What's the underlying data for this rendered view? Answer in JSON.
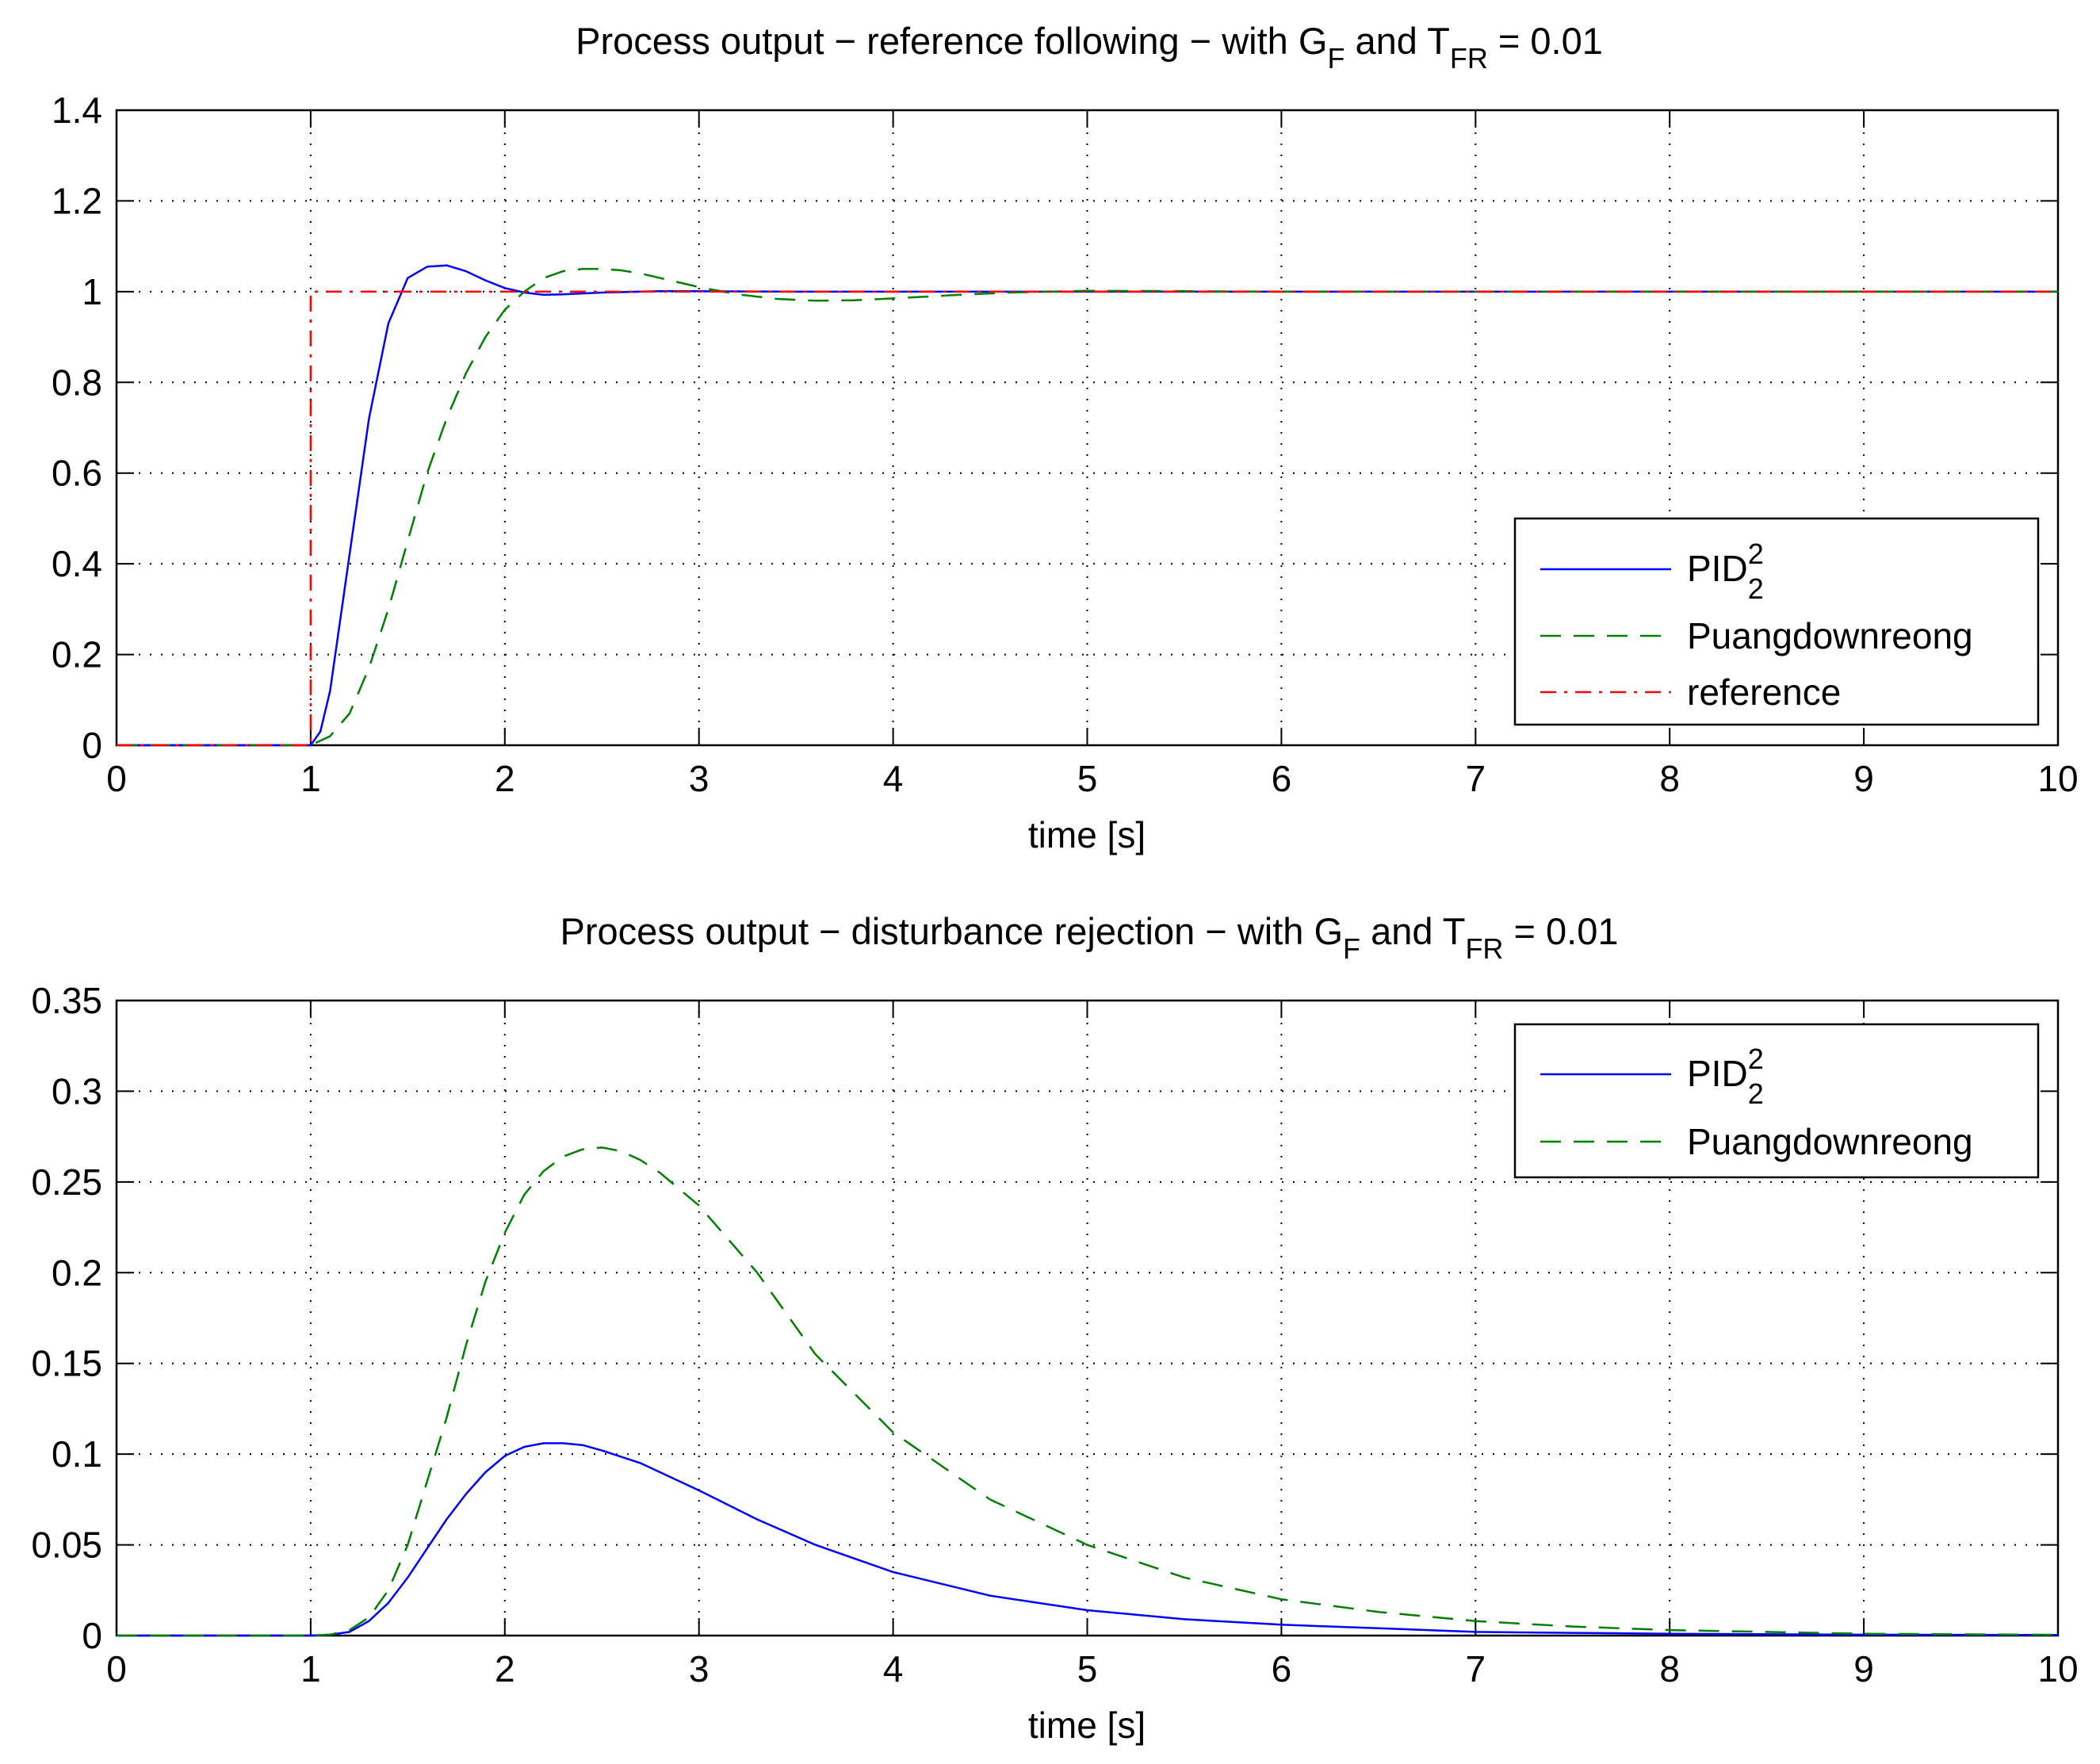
{
  "chart_data": [
    {
      "type": "line",
      "title": "Process output − reference following − with G",
      "title_sub1": "F",
      "title_mid": " and T",
      "title_sub2": "FR",
      "title_end": " = 0.01",
      "xlabel": "time [s]",
      "ylabel": "",
      "xlim": [
        0,
        10
      ],
      "ylim": [
        0,
        1.4
      ],
      "xticks": [
        0,
        1,
        2,
        3,
        4,
        5,
        6,
        7,
        8,
        9,
        10
      ],
      "yticks": [
        0,
        0.2,
        0.4,
        0.6,
        0.8,
        1,
        1.2,
        1.4
      ],
      "xtick_labels": [
        "0",
        "1",
        "2",
        "3",
        "4",
        "5",
        "6",
        "7",
        "8",
        "9",
        "10"
      ],
      "ytick_labels": [
        "0",
        "0.2",
        "0.4",
        "0.6",
        "0.8",
        "1",
        "1.2",
        "1.4"
      ],
      "grid": true,
      "legend_position": "right",
      "series": [
        {
          "name": "PID",
          "name_sub": "2",
          "name_sup": "2",
          "color": "#0000ff",
          "style": "solid",
          "x": [
            0,
            1.0,
            1.05,
            1.1,
            1.2,
            1.3,
            1.4,
            1.5,
            1.6,
            1.7,
            1.8,
            1.9,
            2.0,
            2.1,
            2.2,
            2.3,
            2.5,
            2.8,
            3.0,
            3.5,
            4.0,
            5.0,
            10
          ],
          "y": [
            0,
            0,
            0.03,
            0.12,
            0.42,
            0.72,
            0.93,
            1.03,
            1.055,
            1.058,
            1.045,
            1.025,
            1.008,
            0.998,
            0.993,
            0.994,
            0.998,
            1.001,
            1.001,
            1.0,
            1.0,
            1.0,
            1.0
          ]
        },
        {
          "name": "Puangdownreong",
          "name_sub": "",
          "name_sup": "",
          "color": "#008000",
          "style": "dashed",
          "x": [
            0,
            1.0,
            1.1,
            1.2,
            1.3,
            1.4,
            1.5,
            1.6,
            1.7,
            1.8,
            1.9,
            2.0,
            2.1,
            2.2,
            2.3,
            2.4,
            2.5,
            2.6,
            2.7,
            2.8,
            3.0,
            3.2,
            3.4,
            3.6,
            3.8,
            4.0,
            4.3,
            4.6,
            5.0,
            5.5,
            6.0,
            10
          ],
          "y": [
            0,
            0,
            0.02,
            0.07,
            0.17,
            0.3,
            0.45,
            0.6,
            0.72,
            0.82,
            0.9,
            0.96,
            1.0,
            1.03,
            1.045,
            1.05,
            1.05,
            1.047,
            1.04,
            1.03,
            1.01,
            0.994,
            0.984,
            0.98,
            0.981,
            0.985,
            0.992,
            0.998,
            1.002,
            1.001,
            1.0,
            1.0
          ]
        },
        {
          "name": "reference",
          "name_sub": "",
          "name_sup": "",
          "color": "#ff0000",
          "style": "dashdot",
          "x": [
            0,
            1.0,
            1.0,
            10
          ],
          "y": [
            0,
            0,
            1,
            1
          ]
        }
      ]
    },
    {
      "type": "line",
      "title": "Process output − disturbance rejection − with G",
      "title_sub1": "F",
      "title_mid": " and T",
      "title_sub2": "FR",
      "title_end": " = 0.01",
      "xlabel": "time [s]",
      "ylabel": "",
      "xlim": [
        0,
        10
      ],
      "ylim": [
        0,
        0.35
      ],
      "xticks": [
        0,
        1,
        2,
        3,
        4,
        5,
        6,
        7,
        8,
        9,
        10
      ],
      "yticks": [
        0,
        0.05,
        0.1,
        0.15,
        0.2,
        0.25,
        0.3,
        0.35
      ],
      "xtick_labels": [
        "0",
        "1",
        "2",
        "3",
        "4",
        "5",
        "6",
        "7",
        "8",
        "9",
        "10"
      ],
      "ytick_labels": [
        "0",
        "0.05",
        "0.1",
        "0.15",
        "0.2",
        "0.25",
        "0.3",
        "0.35"
      ],
      "grid": true,
      "legend_position": "top-right",
      "series": [
        {
          "name": "PID",
          "name_sub": "2",
          "name_sup": "2",
          "color": "#0000ff",
          "style": "solid",
          "x": [
            0,
            1.0,
            1.1,
            1.2,
            1.3,
            1.4,
            1.5,
            1.6,
            1.7,
            1.8,
            1.9,
            2.0,
            2.1,
            2.2,
            2.3,
            2.4,
            2.5,
            2.7,
            3.0,
            3.3,
            3.6,
            4.0,
            4.5,
            5.0,
            5.5,
            6.0,
            6.5,
            7.0,
            7.5,
            8.0,
            9.0,
            10
          ],
          "y": [
            0,
            0,
            0.0005,
            0.002,
            0.008,
            0.018,
            0.032,
            0.048,
            0.064,
            0.078,
            0.09,
            0.099,
            0.104,
            0.106,
            0.106,
            0.105,
            0.102,
            0.095,
            0.08,
            0.064,
            0.05,
            0.035,
            0.022,
            0.014,
            0.009,
            0.006,
            0.004,
            0.002,
            0.0015,
            0.001,
            0.0005,
            0.0003
          ]
        },
        {
          "name": "Puangdownreong",
          "name_sub": "",
          "name_sup": "",
          "color": "#008000",
          "style": "dashed",
          "x": [
            0,
            1.0,
            1.1,
            1.2,
            1.3,
            1.4,
            1.5,
            1.6,
            1.7,
            1.8,
            1.9,
            2.0,
            2.1,
            2.2,
            2.3,
            2.4,
            2.5,
            2.6,
            2.7,
            2.8,
            3.0,
            3.3,
            3.6,
            4.0,
            4.5,
            5.0,
            5.5,
            6.0,
            6.5,
            7.0,
            7.5,
            8.0,
            9.0,
            10
          ],
          "y": [
            0,
            0,
            0.0005,
            0.003,
            0.01,
            0.025,
            0.05,
            0.085,
            0.12,
            0.16,
            0.195,
            0.222,
            0.243,
            0.256,
            0.264,
            0.268,
            0.269,
            0.267,
            0.262,
            0.255,
            0.237,
            0.2,
            0.155,
            0.112,
            0.075,
            0.05,
            0.032,
            0.02,
            0.013,
            0.008,
            0.005,
            0.003,
            0.001,
            0.0004
          ]
        }
      ]
    }
  ]
}
